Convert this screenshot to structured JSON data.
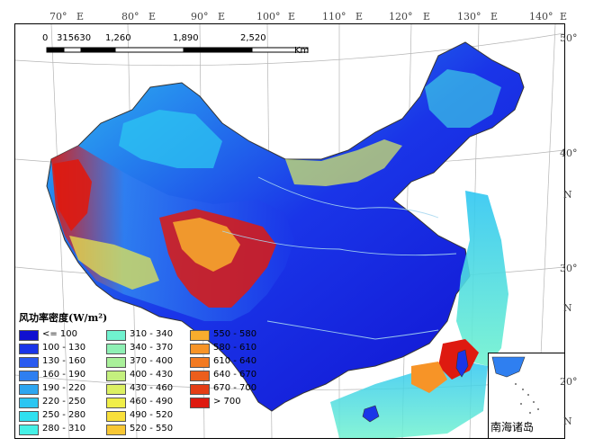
{
  "top_longitudes": [
    "70°",
    "E",
    "80°",
    "E",
    "90°",
    "E",
    "100°",
    "E",
    "110°",
    "E",
    "120°",
    "E",
    "130°",
    "E",
    "140°",
    "E"
  ],
  "right_latitudes": [
    "50°",
    "40°",
    "N",
    "30°",
    "N",
    "20°",
    "N"
  ],
  "scale_bar": {
    "ticks": [
      "0",
      "315",
      "630",
      "1,260",
      "1,890",
      "2,520"
    ],
    "unit": "Km"
  },
  "legend": {
    "title": "风功率密度(W/m²)",
    "items": [
      {
        "label": "<= 100",
        "color": "#1010d0"
      },
      {
        "label": "100 - 130",
        "color": "#1a35e8"
      },
      {
        "label": "130 - 160",
        "color": "#2a5af0"
      },
      {
        "label": "160 - 190",
        "color": "#2f7ff0"
      },
      {
        "label": "190 - 220",
        "color": "#2ea6f0"
      },
      {
        "label": "220 - 250",
        "color": "#2cc6f2"
      },
      {
        "label": "250 - 280",
        "color": "#2fe0f0"
      },
      {
        "label": "280 - 310",
        "color": "#45f0e6"
      },
      {
        "label": "310 - 340",
        "color": "#70f2cf"
      },
      {
        "label": "340 - 370",
        "color": "#8ef0b4"
      },
      {
        "label": "370 - 400",
        "color": "#a9f09a"
      },
      {
        "label": "400 - 430",
        "color": "#c4f07e"
      },
      {
        "label": "430 - 460",
        "color": "#dcf062"
      },
      {
        "label": "460 - 490",
        "color": "#f0ee48"
      },
      {
        "label": "490 - 520",
        "color": "#f8df3a"
      },
      {
        "label": "520 - 550",
        "color": "#f8c733"
      },
      {
        "label": "550 - 580",
        "color": "#f8ad2d"
      },
      {
        "label": "580 - 610",
        "color": "#f79427"
      },
      {
        "label": "610 - 640",
        "color": "#f27a22"
      },
      {
        "label": "640 - 670",
        "color": "#ec5e1c"
      },
      {
        "label": "670 - 700",
        "color": "#e43e16"
      },
      {
        "label": "> 700",
        "color": "#de1a10"
      }
    ]
  },
  "inset": {
    "label": "南海诸岛"
  }
}
